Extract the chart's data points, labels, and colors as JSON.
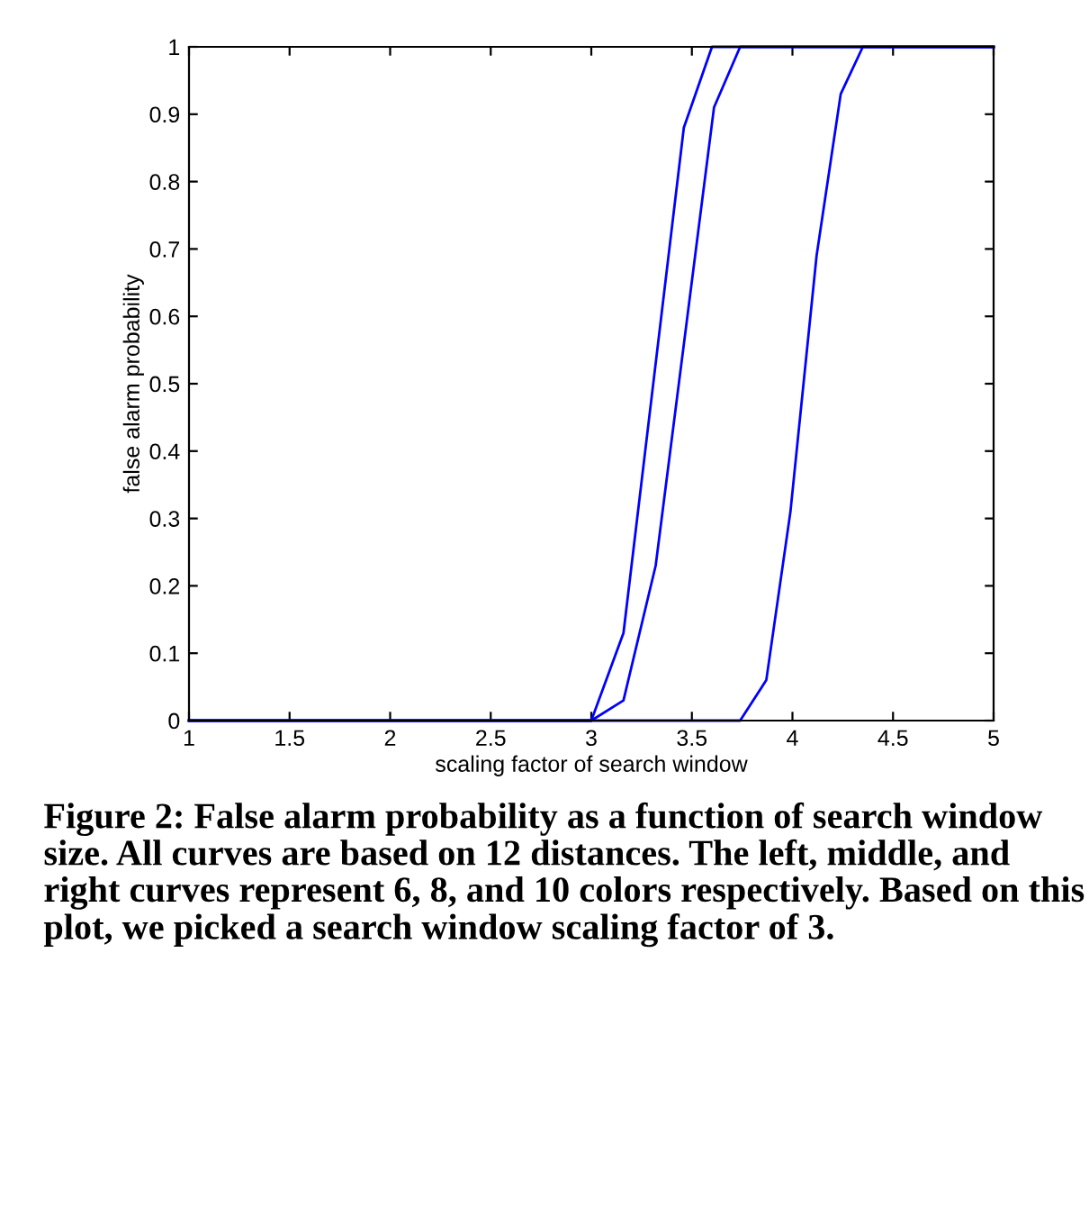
{
  "chart_data": {
    "type": "line",
    "xlabel": "scaling factor of search window",
    "ylabel": "false alarm probability",
    "xlim": [
      1,
      5
    ],
    "ylim": [
      0,
      1
    ],
    "xticks": [
      1,
      1.5,
      2,
      2.5,
      3,
      3.5,
      4,
      4.5,
      5
    ],
    "yticks": [
      0,
      0.1,
      0.2,
      0.3,
      0.4,
      0.5,
      0.6,
      0.7,
      0.8,
      0.9,
      1
    ],
    "grid": false,
    "line_style": "solid",
    "marker": "none",
    "series": [
      {
        "color": "#0000ff",
        "x": [
          1,
          3,
          3.16,
          3.46,
          3.6,
          5
        ],
        "values": [
          0,
          0,
          0.13,
          0.88,
          1,
          1
        ]
      },
      {
        "color": "#0000ff",
        "x": [
          1,
          3,
          3.16,
          3.32,
          3.61,
          3.74,
          5
        ],
        "values": [
          0,
          0,
          0.03,
          0.23,
          0.91,
          1,
          1
        ]
      },
      {
        "color": "#0000ff",
        "x": [
          1,
          3.74,
          3.87,
          3.99,
          4.12,
          4.24,
          4.35,
          5
        ],
        "values": [
          0,
          0,
          0.06,
          0.31,
          0.69,
          0.93,
          1,
          1
        ]
      }
    ],
    "annotations": [
      "Figure 2: False alarm probability as a function of search window size. All curves are based on 12 distances. The left, middle, and right curves represent 6, 8, and 10 colors respectively. Based on this plot, we picked a search window scaling factor of 3."
    ]
  }
}
